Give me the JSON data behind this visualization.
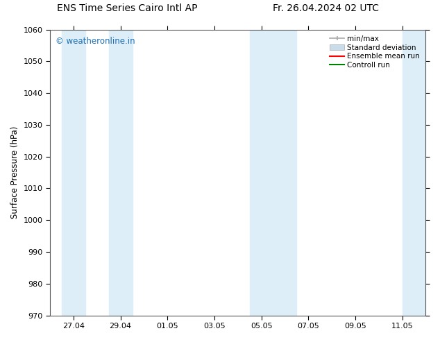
{
  "title_left": "ENS Time Series Cairo Intl AP",
  "title_right": "Fr. 26.04.2024 02 UTC",
  "ylabel": "Surface Pressure (hPa)",
  "ylim": [
    970,
    1060
  ],
  "yticks": [
    970,
    980,
    990,
    1000,
    1010,
    1020,
    1030,
    1040,
    1050,
    1060
  ],
  "xtick_labels": [
    "27.04",
    "29.04",
    "01.05",
    "03.05",
    "05.05",
    "07.05",
    "09.05",
    "11.05"
  ],
  "xtick_positions": [
    1,
    3,
    5,
    7,
    9,
    11,
    13,
    15
  ],
  "xlim": [
    0,
    16
  ],
  "watermark": "© weatheronline.in",
  "watermark_color": "#1a6eb5",
  "bg_color": "#ffffff",
  "plot_bg_color": "#ffffff",
  "band_color": "#ddeef8",
  "shaded_bands": [
    {
      "x_start": 0.5,
      "x_end": 1.5
    },
    {
      "x_start": 2.5,
      "x_end": 3.5
    },
    {
      "x_start": 8.5,
      "x_end": 9.5
    },
    {
      "x_start": 9.5,
      "x_end": 10.5
    },
    {
      "x_start": 15.0,
      "x_end": 16.0
    }
  ],
  "legend_entries": [
    {
      "label": "min/max",
      "type": "errorbar"
    },
    {
      "label": "Standard deviation",
      "type": "fill"
    },
    {
      "label": "Ensemble mean run",
      "type": "line",
      "color": "#ff0000"
    },
    {
      "label": "Controll run",
      "type": "line",
      "color": "#008000"
    }
  ],
  "minmax_color": "#aaaaaa",
  "std_color": "#c8dcea",
  "title_fontsize": 10,
  "axis_fontsize": 8.5,
  "tick_fontsize": 8,
  "legend_fontsize": 7.5
}
